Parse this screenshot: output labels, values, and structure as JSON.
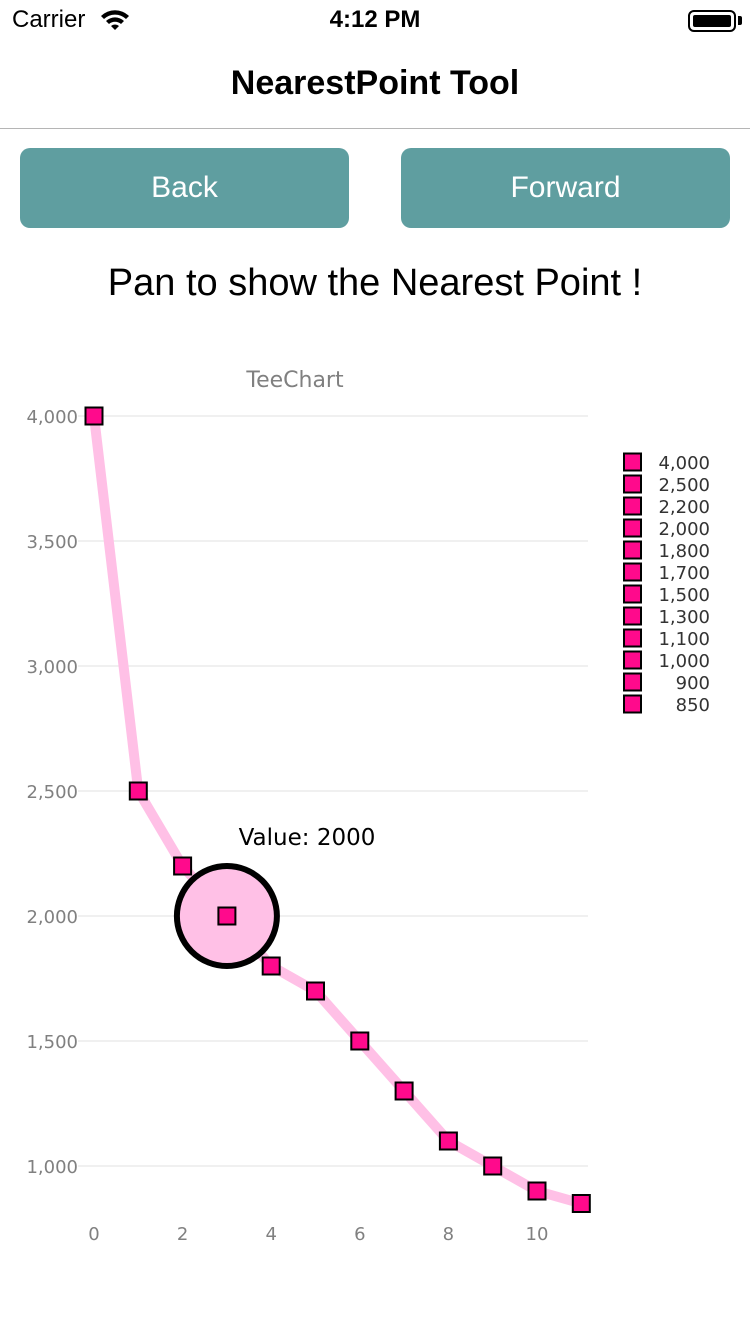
{
  "status_bar": {
    "carrier": "Carrier",
    "time": "4:12 PM"
  },
  "nav": {
    "title": "NearestPoint Tool"
  },
  "buttons": {
    "back": "Back",
    "forward": "Forward"
  },
  "instruction": "Pan to show the Nearest Point !",
  "colors": {
    "button_bg": "#5f9ea0",
    "marker_fill": "#ff0a8c",
    "line": "#ffc0e6",
    "highlight_fill": "#ffc0e6"
  },
  "chart_data": {
    "type": "line",
    "title": "TeeChart",
    "xlabel": "",
    "ylabel": "",
    "x": [
      0,
      1,
      2,
      3,
      4,
      5,
      6,
      7,
      8,
      9,
      10,
      11
    ],
    "values": [
      4000,
      2500,
      2200,
      2000,
      1800,
      1700,
      1500,
      1300,
      1100,
      1000,
      900,
      850
    ],
    "x_ticks": [
      "0",
      "2",
      "4",
      "6",
      "8",
      "10"
    ],
    "y_ticks": [
      "1,000",
      "1,500",
      "2,000",
      "2,500",
      "3,000",
      "3,500",
      "4,000"
    ],
    "legend_labels": [
      "4,000",
      "2,500",
      "2,200",
      "2,000",
      "1,800",
      "1,700",
      "1,500",
      "1,300",
      "1,100",
      "1,000",
      "900",
      "850"
    ],
    "legend_position": "right",
    "nearest_point": {
      "index": 3,
      "label": "Value: 2000"
    },
    "xlim": [
      0,
      11
    ],
    "ylim": [
      850,
      4000
    ],
    "grid": true
  }
}
